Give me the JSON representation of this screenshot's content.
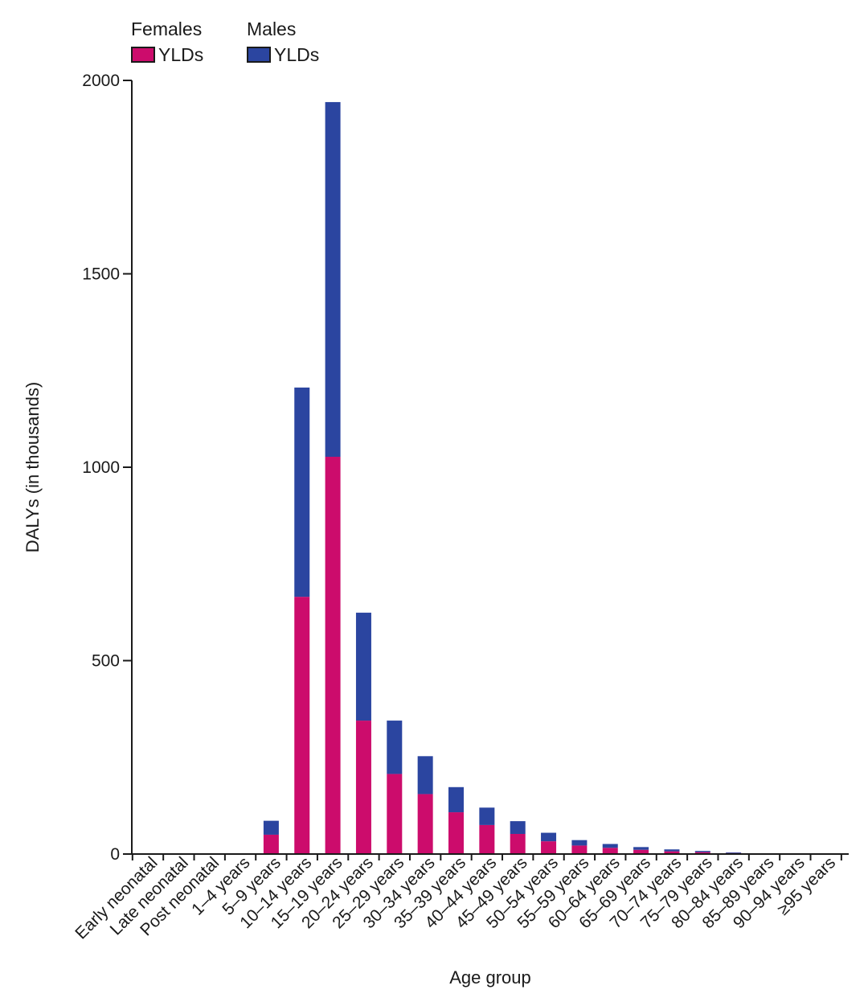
{
  "legend": {
    "female_group": "Females",
    "female_label": "YLDs",
    "male_group": "Males",
    "male_label": "YLDs"
  },
  "chart_data": {
    "type": "bar",
    "stacked": true,
    "title": "",
    "xlabel": "Age group",
    "ylabel": "DALYs (in thousands)",
    "ylim": [
      0,
      2000
    ],
    "yticks": [
      0,
      500,
      1000,
      1500,
      2000
    ],
    "categories": [
      "Early neonatal",
      "Late neonatal",
      "Post neonatal",
      "1–4 years",
      "5–9 years",
      "10–14 years",
      "15–19 years",
      "20–24 years",
      "25–29 years",
      "30–34 years",
      "35–39 years",
      "40–44 years",
      "45–49 years",
      "50–54 years",
      "55–59 years",
      "60–64 years",
      "65–69 years",
      "70–74 years",
      "75–79 years",
      "80–84 years",
      "85–89 years",
      "90–94 years",
      "≥95 years"
    ],
    "series": [
      {
        "name": "Females YLDs",
        "color": "#cc0c6c",
        "values": [
          0,
          0,
          0,
          0,
          50,
          665,
          1027,
          345,
          207,
          155,
          108,
          75,
          52,
          33,
          22,
          16,
          11,
          7,
          5,
          3,
          1,
          0,
          0
        ]
      },
      {
        "name": "Males YLDs",
        "color": "#2b45a0",
        "values": [
          0,
          0,
          0,
          0,
          36,
          541,
          917,
          279,
          138,
          98,
          65,
          45,
          33,
          22,
          14,
          10,
          7,
          5,
          3,
          1,
          1,
          1,
          0
        ]
      }
    ],
    "grid": false,
    "legend_position": "top-left"
  }
}
